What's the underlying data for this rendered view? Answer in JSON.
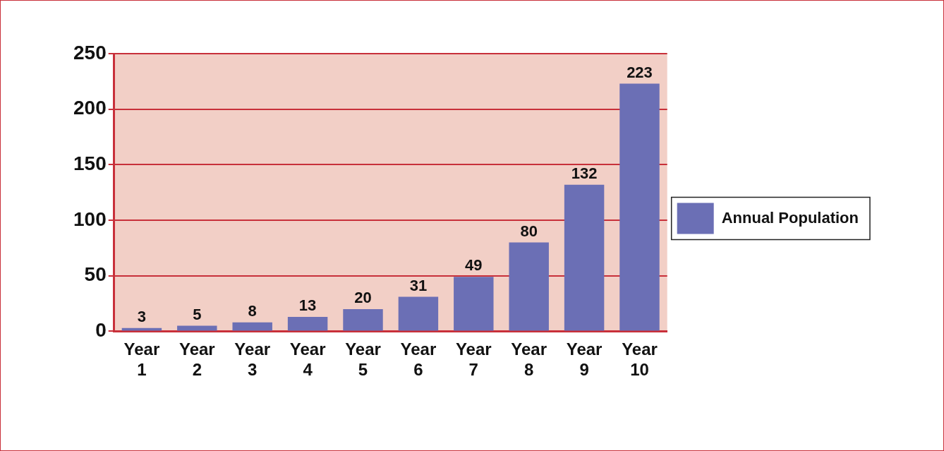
{
  "chart_data": {
    "type": "bar",
    "categories": [
      "Year 1",
      "Year 2",
      "Year 3",
      "Year 4",
      "Year 5",
      "Year 6",
      "Year 7",
      "Year 8",
      "Year 9",
      "Year 10"
    ],
    "series": [
      {
        "name": "Annual Population",
        "color": "#6b6fb5",
        "values": [
          3,
          5,
          8,
          13,
          20,
          31,
          49,
          80,
          132,
          223
        ]
      }
    ],
    "ylim": [
      0,
      250
    ],
    "yticks": [
      0,
      50,
      100,
      150,
      200,
      250
    ],
    "grid": "y",
    "legend": "right",
    "data_labels": true
  }
}
